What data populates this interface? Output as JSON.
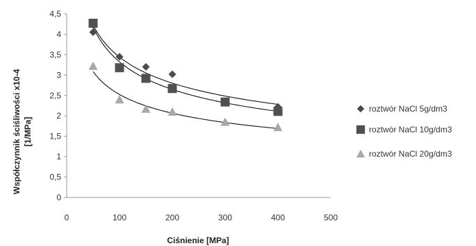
{
  "chart_data": {
    "type": "scatter",
    "xlabel": "Ciśnienie [MPa]",
    "ylabel_line1": "Współczynnik ściśliwości   x10-4",
    "ylabel_line2": "[1/MPa]",
    "xlim": [
      0,
      500
    ],
    "ylim": [
      0,
      4.5
    ],
    "x_ticks": [
      "0",
      "100",
      "200",
      "300",
      "400",
      "500"
    ],
    "y_ticks": [
      "0",
      "0,5",
      "1",
      "1,5",
      "2",
      "2,5",
      "3",
      "3,5",
      "4",
      "4,5"
    ],
    "grid": false,
    "legend_position": "right",
    "trendlines": true,
    "series": [
      {
        "name": "roztwór NaCl 5g/dm3",
        "marker": "diamond",
        "color": "#4a4a4a",
        "x": [
          50,
          100,
          150,
          200,
          300,
          400
        ],
        "y": [
          4.05,
          3.45,
          3.2,
          3.02,
          2.35,
          2.22
        ]
      },
      {
        "name": "roztwór NaCl 10g/dm3",
        "marker": "square",
        "color": "#505050",
        "x": [
          50,
          100,
          150,
          200,
          300,
          400
        ],
        "y": [
          4.27,
          3.18,
          2.92,
          2.67,
          2.34,
          2.11
        ]
      },
      {
        "name": "roztwór NaCl 20g/dm3",
        "marker": "triangle",
        "color": "#a8a8a8",
        "x": [
          50,
          100,
          150,
          200,
          300,
          400
        ],
        "y": [
          3.22,
          2.4,
          2.17,
          2.1,
          1.85,
          1.72
        ]
      }
    ]
  }
}
